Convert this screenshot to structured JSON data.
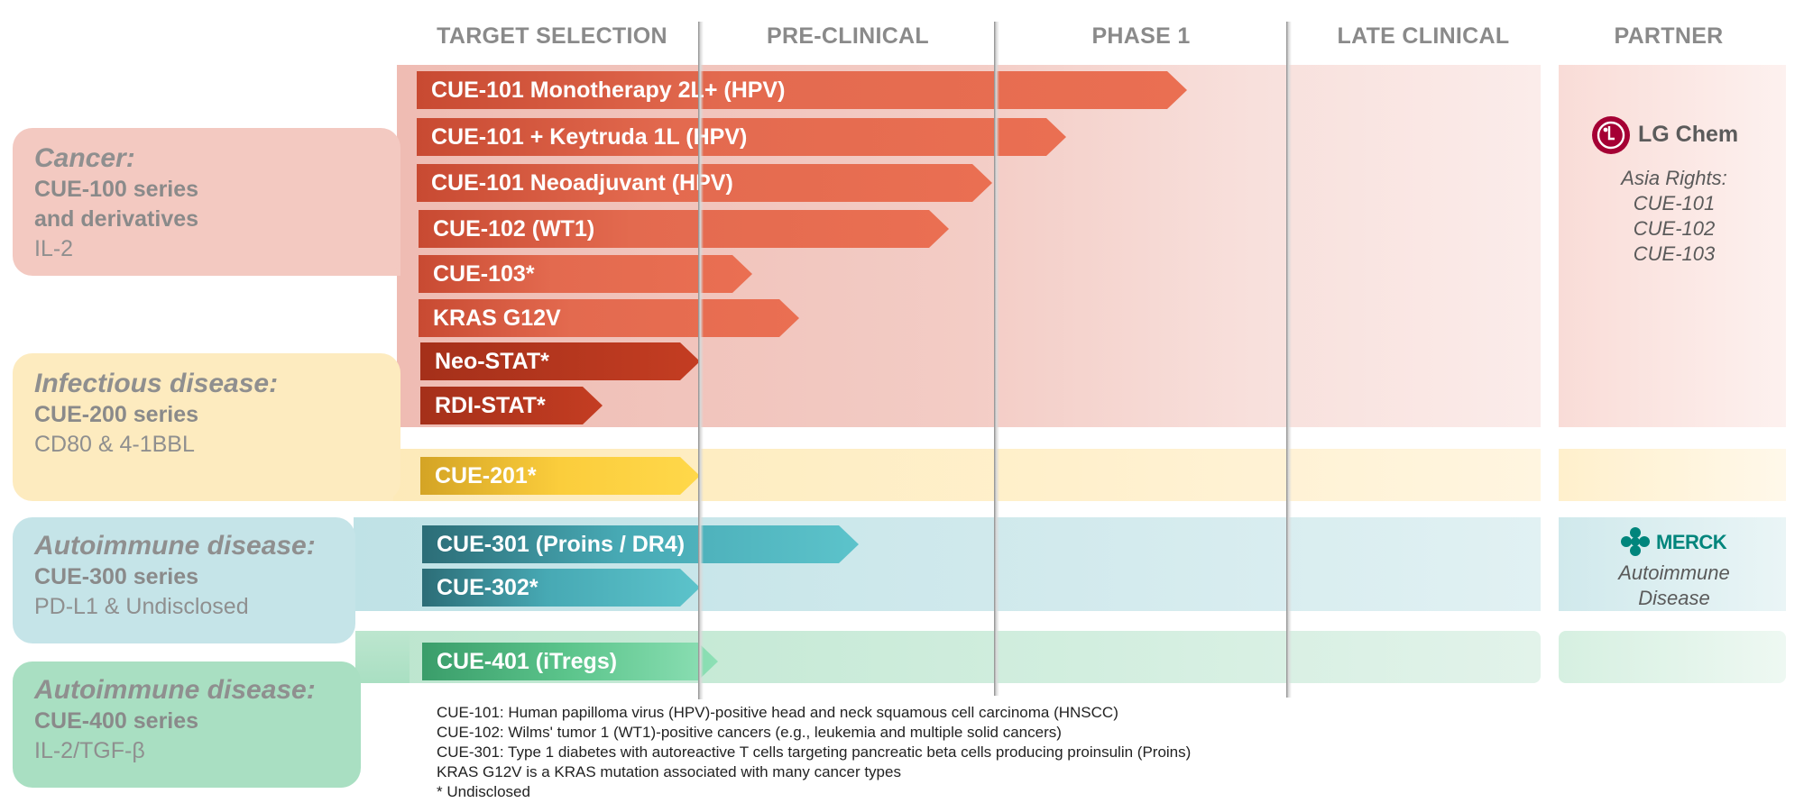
{
  "stages": [
    "TARGET SELECTION",
    "PRE-CLINICAL",
    "PHASE 1",
    "LATE CLINICAL",
    "PARTNER"
  ],
  "categories": [
    {
      "title": "Cancer:",
      "series": [
        "CUE-100 series",
        "and derivatives"
      ],
      "detail": "IL-2"
    },
    {
      "title": "Infectious disease:",
      "series": [
        "CUE-200 series"
      ],
      "detail": "CD80 & 4-1BBL"
    },
    {
      "title": "Autoimmune disease:",
      "series": [
        "CUE-300 series"
      ],
      "detail": "PD-L1 & Undisclosed"
    },
    {
      "title": "Autoimmune disease:",
      "series": [
        "CUE-400 series"
      ],
      "detail": "IL-2/TGF-β"
    }
  ],
  "programs": [
    {
      "label": "CUE-101 Monotherapy 2L+ (HPV)",
      "color": "#e36a4f"
    },
    {
      "label": "CUE-101 + Keytruda 1L (HPV)",
      "color": "#e36a4f"
    },
    {
      "label": "CUE-101 Neoadjuvant (HPV)",
      "color": "#e36a4f"
    },
    {
      "label": "CUE-102 (WT1)",
      "color": "#e36a4f"
    },
    {
      "label": "CUE-103*",
      "color": "#e36a4f"
    },
    {
      "label": "KRAS G12V",
      "color": "#e36a4f"
    },
    {
      "label": "Neo-STAT*",
      "color": "#c43d22"
    },
    {
      "label": "RDI-STAT*",
      "color": "#c43d22"
    },
    {
      "label": "CUE-201*",
      "color": "#fbcd3c"
    },
    {
      "label": "CUE-301 (Proins / DR4)",
      "color": "#47a9b4"
    },
    {
      "label": "CUE-302*",
      "color": "#47a9b4"
    },
    {
      "label": "CUE-401 (iTregs)",
      "color": "#5cc58c"
    }
  ],
  "partners": {
    "lg_chem": {
      "logo_text": "LG Chem",
      "rights_title": "Asia Rights:",
      "rights": [
        "CUE-101",
        "CUE-102",
        "CUE-103"
      ],
      "color": "#a50034"
    },
    "merck": {
      "logo_text": "MERCK",
      "note": [
        "Autoimmune",
        "Disease"
      ],
      "color": "#00857c"
    }
  },
  "footnotes": [
    "CUE-101: Human papilloma virus (HPV)-positive head and neck squamous cell carcinoma (HNSCC)",
    "CUE-102: Wilms' tumor 1 (WT1)-positive cancers (e.g., leukemia and multiple solid cancers)",
    "CUE-301: Type 1 diabetes with autoreactive T cells targeting pancreatic beta cells producing proinsulin (Proins)",
    "KRAS G12V is a KRAS mutation associated with many cancer types",
    "* Undisclosed"
  ]
}
